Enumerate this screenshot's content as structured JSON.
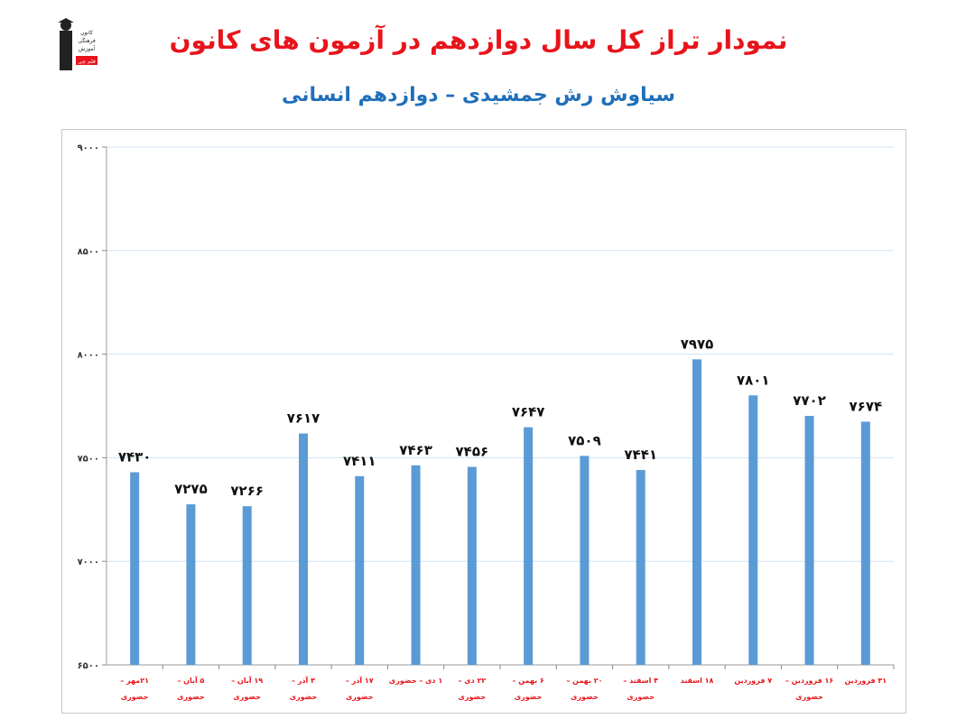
{
  "header": {
    "title": "نمودار تراز کل سال دوازدهم در آزمون های کانون",
    "subtitle": "سیاوش رش جمشیدی – دوازدهم انسانی",
    "logo_text": [
      "کانون",
      "فرهنگی",
      "آموزش",
      "قلم چی"
    ]
  },
  "chart_data": {
    "type": "bar",
    "title": "نمودار تراز کل سال دوازدهم در آزمون های کانون",
    "subtitle": "سیاوش رش جمشیدی – دوازدهم انسانی",
    "ylim": [
      6500,
      9000
    ],
    "yticks": [
      6500,
      7000,
      7500,
      8000,
      8500,
      9000
    ],
    "ytick_labels": [
      "۶۵۰۰",
      "۷۰۰۰",
      "۷۵۰۰",
      "۸۰۰۰",
      "۸۵۰۰",
      "۹۰۰۰"
    ],
    "grid": true,
    "bar_color": "#5b9bd5",
    "label_color": "#e8141b",
    "categories": [
      [
        "۲۱مهر –",
        "حضوری"
      ],
      [
        "۵ آبان –",
        "حضوری"
      ],
      [
        "۱۹ آبان –",
        "حضوری"
      ],
      [
        "۳ آذر –",
        "حضوری"
      ],
      [
        "۱۷ آذر –",
        "حضوری"
      ],
      [
        "۱ دی – حضوری"
      ],
      [
        "۲۲ دی –",
        "حضوری"
      ],
      [
        "۶ بهمن –",
        "حضوری"
      ],
      [
        "۲۰ بهمن –",
        "حضوری"
      ],
      [
        "۴ اسفند –",
        "حضوری"
      ],
      [
        "۱۸ اسفند"
      ],
      [
        "۷ فروردین"
      ],
      [
        "۱۶ فروردین –",
        "حضوری"
      ],
      [
        "۳۱ فروردین"
      ]
    ],
    "values": [
      7430,
      7275,
      7266,
      7617,
      7411,
      7463,
      7456,
      7647,
      7509,
      7441,
      7975,
      7801,
      7702,
      7674
    ],
    "value_labels": [
      "۷۴۳۰",
      "۷۲۷۵",
      "۷۲۶۶",
      "۷۶۱۷",
      "۷۴۱۱",
      "۷۴۶۳",
      "۷۴۵۶",
      "۷۶۴۷",
      "۷۵۰۹",
      "۷۴۴۱",
      "۷۹۷۵",
      "۷۸۰۱",
      "۷۷۰۲",
      "۷۶۷۴"
    ]
  }
}
